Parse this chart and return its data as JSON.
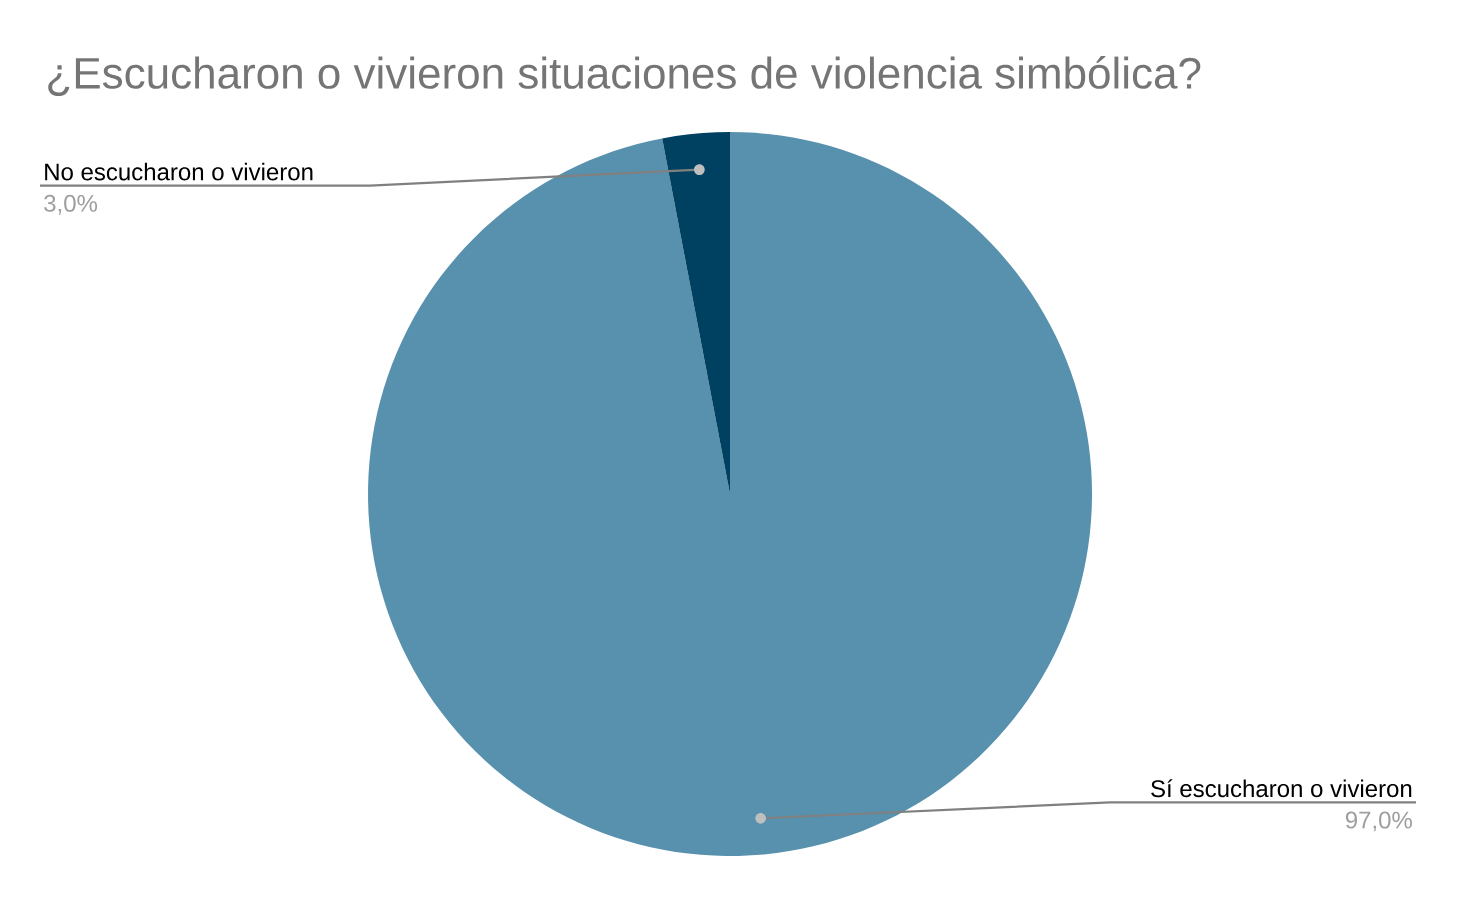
{
  "chart_data": {
    "type": "pie",
    "title": "¿Escucharon o vivieron situaciones de violencia simbólica?",
    "categories": [
      "Sí escucharon o vivieron",
      "No escucharon o vivieron"
    ],
    "values": [
      97,
      3
    ],
    "colors": [
      "#5891ad",
      "#004061"
    ],
    "value_labels": [
      "97,0%",
      "3,0%"
    ]
  }
}
